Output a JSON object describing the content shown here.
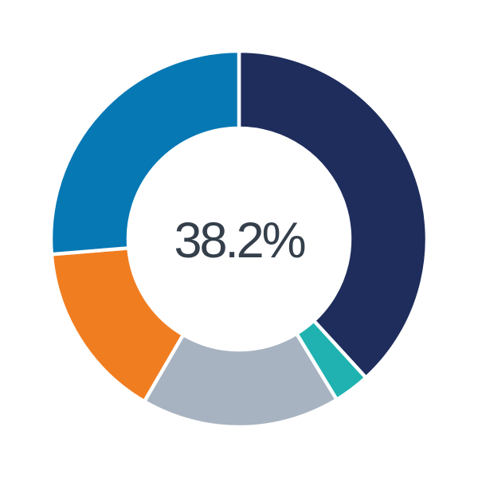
{
  "chart_data": {
    "type": "pie",
    "variant": "donut",
    "title": "",
    "center_label": "38.2%",
    "center_label_color": "#343f4b",
    "background_color": "#ffffff",
    "gap_color": "#ffffff",
    "start_angle_deg": 0,
    "direction": "clockwise",
    "inner_radius_ratio": 0.59,
    "legend_position": "none",
    "segments": [
      {
        "name": "dark-navy",
        "value": 38.2,
        "color": "#1e2d5c"
      },
      {
        "name": "teal",
        "value": 3.1,
        "color": "#1fb2b0"
      },
      {
        "name": "gray",
        "value": 17.1,
        "color": "#a8b3c1"
      },
      {
        "name": "orange",
        "value": 15.3,
        "color": "#f17d21"
      },
      {
        "name": "blue",
        "value": 26.3,
        "color": "#0678b4"
      }
    ]
  }
}
